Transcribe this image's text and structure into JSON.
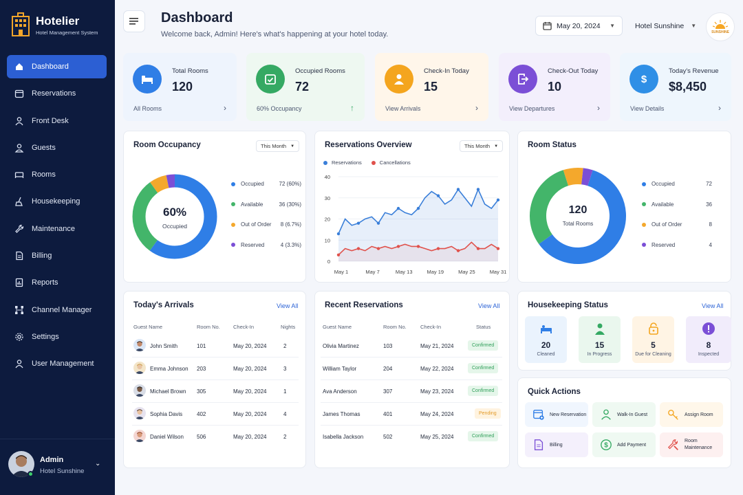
{
  "brand": {
    "name": "Hotelier",
    "subtitle": "Hotel Management System"
  },
  "sidebar": {
    "items": [
      {
        "label": "Dashboard",
        "icon": "home-icon"
      },
      {
        "label": "Reservations",
        "icon": "calendar-icon"
      },
      {
        "label": "Front Desk",
        "icon": "user-icon"
      },
      {
        "label": "Guests",
        "icon": "users-icon"
      },
      {
        "label": "Rooms",
        "icon": "bed-icon"
      },
      {
        "label": "Housekeeping",
        "icon": "broom-icon"
      },
      {
        "label": "Maintenance",
        "icon": "wrench-icon"
      },
      {
        "label": "Billing",
        "icon": "document-icon"
      },
      {
        "label": "Reports",
        "icon": "report-icon"
      },
      {
        "label": "Channel Manager",
        "icon": "network-icon"
      },
      {
        "label": "Settings",
        "icon": "gear-icon"
      },
      {
        "label": "User Management",
        "icon": "user-group-icon"
      }
    ],
    "user": {
      "name": "Admin",
      "hotel": "Hotel Sunshine"
    }
  },
  "header": {
    "title": "Dashboard",
    "subtitle": "Welcome back, Admin! Here's what's happening at your hotel today.",
    "date": "May 20, 2024",
    "hotel": "Hotel Sunshine",
    "logo_text": "SUNSHINE"
  },
  "stats": [
    {
      "label": "Total Rooms",
      "value": "120",
      "footer": "All Rooms",
      "color": "#2f7ee6",
      "bg": "#eef4fd"
    },
    {
      "label": "Occupied Rooms",
      "value": "72",
      "footer": "60% Occupancy",
      "color": "#35a963",
      "bg": "#eef8f1"
    },
    {
      "label": "Check-In Today",
      "value": "15",
      "footer": "View Arrivals",
      "color": "#f4a51e",
      "bg": "#fff6ea"
    },
    {
      "label": "Check-Out Today",
      "value": "10",
      "footer": "View Departures",
      "color": "#7b4fd6",
      "bg": "#f3effc"
    },
    {
      "label": "Today's Revenue",
      "value": "$8,450",
      "footer": "View Details",
      "color": "#2f8fe6",
      "bg": "#eef6fd"
    }
  ],
  "occupancy": {
    "title": "Room Occupancy",
    "filter": "This Month",
    "center_value": "60%",
    "center_label": "Occupied",
    "segments": [
      {
        "label": "Occupied",
        "value": "72 (60%)",
        "count": 72,
        "color": "#2f7ee6"
      },
      {
        "label": "Available",
        "value": "36 (30%)",
        "count": 36,
        "color": "#43b56a"
      },
      {
        "label": "Out of Order",
        "value": "8 (6.7%)",
        "count": 8,
        "color": "#f4a82c"
      },
      {
        "label": "Reserved",
        "value": "4 (3.3%)",
        "count": 4,
        "color": "#7b4fd6"
      }
    ]
  },
  "chart_data": {
    "type": "line",
    "title": "Reservations Overview",
    "filter": "This Month",
    "x_ticks": [
      "May 1",
      "May 7",
      "May 13",
      "May 19",
      "May 25",
      "May 31"
    ],
    "ylim": [
      0,
      40
    ],
    "y_ticks": [
      "0",
      "10",
      "20",
      "30",
      "40"
    ],
    "series": [
      {
        "name": "Reservations",
        "color": "#3a7fd9",
        "values": [
          13,
          20,
          17,
          18,
          20,
          21,
          18,
          23,
          22,
          25,
          23,
          22,
          25,
          30,
          33,
          31,
          27,
          29,
          34,
          30,
          26,
          34,
          27,
          25,
          29
        ]
      },
      {
        "name": "Cancellations",
        "color": "#e0514b",
        "values": [
          3,
          6,
          5,
          6,
          5,
          7,
          6,
          7,
          6,
          7,
          8,
          7,
          7,
          6,
          5,
          6,
          6,
          7,
          5,
          6,
          9,
          6,
          6,
          8,
          6
        ]
      }
    ]
  },
  "room_status": {
    "title": "Room Status",
    "center_value": "120",
    "center_label": "Total Rooms",
    "segments": [
      {
        "label": "Occupied",
        "value": "72",
        "count": 72,
        "color": "#2f7ee6"
      },
      {
        "label": "Available",
        "value": "36",
        "count": 36,
        "color": "#43b56a"
      },
      {
        "label": "Out of Order",
        "value": "8",
        "count": 8,
        "color": "#f4a82c"
      },
      {
        "label": "Reserved",
        "value": "4",
        "count": 4,
        "color": "#7b4fd6"
      }
    ]
  },
  "arrivals": {
    "title": "Today's Arrivals",
    "view_all": "View All",
    "headers": [
      "Guest Name",
      "Room No.",
      "Check-In",
      "Nights"
    ],
    "rows": [
      {
        "name": "John Smith",
        "room": "101",
        "checkin": "May 20, 2024",
        "nights": "2"
      },
      {
        "name": "Emma Johnson",
        "room": "203",
        "checkin": "May 20, 2024",
        "nights": "3"
      },
      {
        "name": "Michael Brown",
        "room": "305",
        "checkin": "May 20, 2024",
        "nights": "1"
      },
      {
        "name": "Sophia Davis",
        "room": "402",
        "checkin": "May 20, 2024",
        "nights": "4"
      },
      {
        "name": "Daniel Wilson",
        "room": "506",
        "checkin": "May 20, 2024",
        "nights": "2"
      }
    ]
  },
  "reservations": {
    "title": "Recent Reservations",
    "view_all": "View All",
    "headers": [
      "Guest Name",
      "Room No.",
      "Check-In",
      "Status"
    ],
    "rows": [
      {
        "name": "Olivia Martinez",
        "room": "103",
        "checkin": "May 21, 2024",
        "status": "Confirmed"
      },
      {
        "name": "William Taylor",
        "room": "204",
        "checkin": "May 22, 2024",
        "status": "Confirmed"
      },
      {
        "name": "Ava Anderson",
        "room": "307",
        "checkin": "May 23, 2024",
        "status": "Confirmed"
      },
      {
        "name": "James Thomas",
        "room": "401",
        "checkin": "May 24, 2024",
        "status": "Pending"
      },
      {
        "name": "Isabella Jackson",
        "room": "502",
        "checkin": "May 25, 2024",
        "status": "Confirmed"
      }
    ]
  },
  "housekeeping": {
    "title": "Housekeeping Status",
    "view_all": "View All",
    "items": [
      {
        "value": "20",
        "label": "Cleaned",
        "color": "#2f7ee6",
        "bg": "#eaf3fd"
      },
      {
        "value": "15",
        "label": "In Progress",
        "color": "#35a963",
        "bg": "#eaf7ee"
      },
      {
        "value": "5",
        "label": "Due for Cleaning",
        "color": "#f4a51e",
        "bg": "#fff4e4"
      },
      {
        "value": "8",
        "label": "Inspected",
        "color": "#7b4fd6",
        "bg": "#f1ecfb"
      }
    ]
  },
  "quick_actions": {
    "title": "Quick Actions",
    "items": [
      {
        "label": "New Reservation",
        "icon": "calendar-plus-icon",
        "color": "#2f7ee6",
        "bg": "#f0f6fe"
      },
      {
        "label": "Walk-In Guest",
        "icon": "person-icon",
        "color": "#35a963",
        "bg": "#eff9f2"
      },
      {
        "label": "Assign Room",
        "icon": "key-icon",
        "color": "#f4a51e",
        "bg": "#fff7ea"
      },
      {
        "label": "Billing",
        "icon": "invoice-icon",
        "color": "#7b4fd6",
        "bg": "#f4f0fc"
      },
      {
        "label": "Add Payment",
        "icon": "dollar-icon",
        "color": "#35a963",
        "bg": "#eff9f2"
      },
      {
        "label": "Room Maintenance",
        "icon": "tools-icon",
        "color": "#e0514b",
        "bg": "#fdf0f0"
      }
    ]
  }
}
